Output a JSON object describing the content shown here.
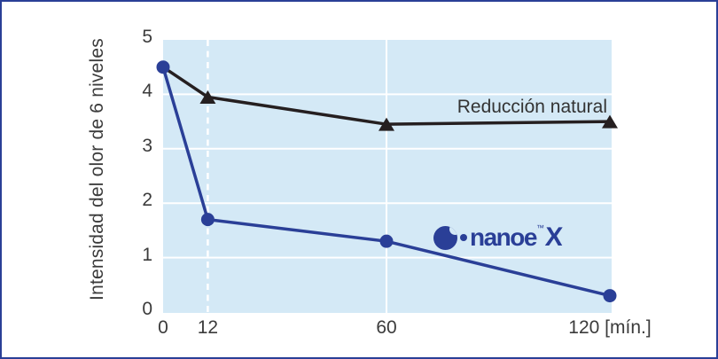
{
  "frame": {
    "border_color": "#2a3f97",
    "background": "#ffffff"
  },
  "chart_data": {
    "type": "line",
    "title": "",
    "xlabel": "",
    "ylabel": "Intensidad del olor de 6 niveles",
    "x_unit_label": "[mín.]",
    "xlim": [
      0,
      120
    ],
    "ylim": [
      0,
      5
    ],
    "x_ticks": [
      0,
      12,
      60,
      120
    ],
    "x_tick_labels": [
      "0",
      "12",
      "60",
      "120 [mín.]"
    ],
    "y_ticks": [
      0,
      1,
      2,
      3,
      4,
      5
    ],
    "plot_bg_color": "#d4e9f6",
    "grid": {
      "color": "#ffffff",
      "horizontal_values": [
        1,
        2,
        3,
        4
      ],
      "vertical_solid_values": [
        60
      ],
      "vertical_dashed_values": [
        12
      ]
    },
    "series": [
      {
        "name": "Reducción natural",
        "color": "#251f20",
        "marker": "triangle",
        "points": [
          {
            "x": 0,
            "y": 4.5
          },
          {
            "x": 12,
            "y": 3.95
          },
          {
            "x": 60,
            "y": 3.45
          },
          {
            "x": 120,
            "y": 3.5
          }
        ]
      },
      {
        "name": "nanoe X",
        "color": "#2a3f97",
        "marker": "circle",
        "points": [
          {
            "x": 0,
            "y": 4.5
          },
          {
            "x": 12,
            "y": 1.7
          },
          {
            "x": 60,
            "y": 1.3
          },
          {
            "x": 120,
            "y": 0.3
          }
        ]
      }
    ]
  },
  "logo": {
    "text": "nanoe",
    "tm": "™",
    "x": "X",
    "color": "#2a3f97"
  }
}
